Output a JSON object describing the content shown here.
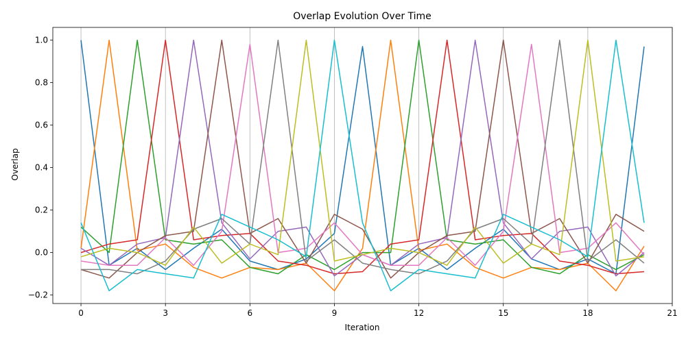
{
  "chart_data": {
    "type": "line",
    "title": "Overlap Evolution Over Time",
    "xlabel": "Iteration",
    "ylabel": "Overlap",
    "xlim": [
      -1,
      21
    ],
    "ylim": [
      -0.24,
      1.06
    ],
    "xticks": [
      0,
      3,
      6,
      9,
      12,
      15,
      18,
      21
    ],
    "yticks": [
      -0.2,
      0.0,
      0.2,
      0.4,
      0.6,
      0.8,
      1.0
    ],
    "grid": "vertical lines at x ticks",
    "legend": "none",
    "x": [
      0,
      1,
      2,
      3,
      4,
      5,
      6,
      7,
      8,
      9,
      10,
      11,
      12,
      13,
      14,
      15,
      16,
      17,
      18,
      19,
      20
    ],
    "series": [
      {
        "color": "#1f77b4",
        "values": [
          1.0,
          -0.06,
          0.02,
          -0.08,
          0.02,
          0.11,
          -0.04,
          -0.08,
          -0.03,
          0.09,
          0.97,
          -0.06,
          0.02,
          -0.08,
          0.02,
          0.11,
          -0.03,
          -0.08,
          -0.03,
          -0.1,
          0.97
        ]
      },
      {
        "color": "#ff7f0e",
        "values": [
          0.02,
          1.0,
          0.01,
          0.04,
          -0.07,
          -0.12,
          -0.07,
          -0.08,
          -0.05,
          -0.18,
          0.02,
          1.0,
          0.01,
          0.04,
          -0.07,
          -0.12,
          -0.07,
          -0.08,
          -0.05,
          -0.18,
          0.03
        ]
      },
      {
        "color": "#2ca02c",
        "values": [
          0.12,
          0.0,
          1.0,
          0.06,
          0.04,
          0.06,
          -0.07,
          -0.1,
          -0.01,
          -0.08,
          0.0,
          0.0,
          1.0,
          0.06,
          0.04,
          0.06,
          -0.07,
          -0.1,
          -0.01,
          -0.08,
          -0.01
        ]
      },
      {
        "color": "#d62728",
        "values": [
          0.0,
          0.04,
          0.06,
          1.0,
          0.06,
          0.08,
          0.09,
          -0.04,
          -0.06,
          -0.1,
          -0.09,
          0.04,
          0.06,
          1.0,
          0.06,
          0.08,
          0.09,
          -0.04,
          -0.06,
          -0.1,
          -0.09
        ]
      },
      {
        "color": "#9467bd",
        "values": [
          0.02,
          -0.06,
          0.04,
          0.07,
          1.0,
          0.14,
          -0.03,
          0.1,
          0.12,
          -0.11,
          -0.01,
          -0.06,
          0.04,
          0.07,
          1.0,
          0.14,
          -0.03,
          0.1,
          0.12,
          -0.11,
          0.0
        ]
      },
      {
        "color": "#8c564b",
        "values": [
          -0.08,
          -0.12,
          0.0,
          0.08,
          0.1,
          1.0,
          0.09,
          0.16,
          -0.05,
          0.18,
          0.11,
          -0.12,
          0.0,
          0.08,
          0.1,
          1.0,
          0.09,
          0.16,
          -0.05,
          0.18,
          0.1
        ]
      },
      {
        "color": "#e377c2",
        "values": [
          -0.04,
          -0.06,
          -0.06,
          0.07,
          -0.06,
          0.1,
          0.98,
          0.0,
          0.02,
          0.14,
          -0.01,
          -0.06,
          -0.06,
          0.07,
          -0.06,
          0.1,
          0.98,
          0.0,
          0.02,
          0.14,
          -0.01
        ]
      },
      {
        "color": "#7f7f7f",
        "values": [
          -0.08,
          -0.08,
          -0.1,
          -0.04,
          0.11,
          0.16,
          0.04,
          1.0,
          -0.04,
          0.06,
          -0.05,
          -0.08,
          -0.1,
          -0.04,
          0.11,
          0.16,
          0.04,
          1.0,
          -0.04,
          0.06,
          -0.05
        ]
      },
      {
        "color": "#bcbd22",
        "values": [
          -0.02,
          0.02,
          0.0,
          -0.06,
          0.12,
          -0.05,
          0.04,
          -0.01,
          1.0,
          -0.04,
          -0.01,
          0.02,
          0.0,
          -0.06,
          0.12,
          -0.05,
          0.04,
          -0.01,
          1.0,
          -0.04,
          -0.02
        ]
      },
      {
        "color": "#17becf",
        "values": [
          0.14,
          -0.18,
          -0.08,
          -0.1,
          -0.12,
          0.18,
          0.12,
          0.06,
          -0.02,
          1.0,
          0.14,
          -0.18,
          -0.08,
          -0.1,
          -0.12,
          0.18,
          0.12,
          0.06,
          -0.02,
          1.0,
          0.14
        ]
      }
    ]
  }
}
